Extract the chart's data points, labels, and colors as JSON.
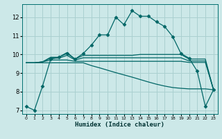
{
  "xlabel": "Humidex (Indice chaleur)",
  "bg_color": "#cce8e8",
  "grid_color": "#aad0d0",
  "line_color": "#006666",
  "xlim": [
    -0.5,
    23.5
  ],
  "ylim": [
    6.8,
    12.7
  ],
  "yticks": [
    7,
    8,
    9,
    10,
    11,
    12
  ],
  "xticks": [
    0,
    1,
    2,
    3,
    4,
    5,
    6,
    7,
    8,
    9,
    10,
    11,
    12,
    13,
    14,
    15,
    16,
    17,
    18,
    19,
    20,
    21,
    22,
    23
  ],
  "series": [
    {
      "x": [
        0,
        1,
        2,
        3,
        4,
        5,
        6,
        7,
        8,
        9,
        10,
        11,
        12,
        13,
        14,
        15,
        16,
        17,
        18,
        19,
        20,
        21,
        22,
        23
      ],
      "y": [
        7.2,
        7.0,
        8.3,
        9.75,
        9.85,
        10.05,
        9.75,
        10.05,
        10.5,
        11.05,
        11.05,
        12.0,
        11.6,
        12.35,
        12.05,
        12.05,
        11.75,
        11.5,
        10.95,
        10.05,
        9.8,
        9.1,
        7.2,
        8.1
      ],
      "marker": "D",
      "markersize": 2.5,
      "linewidth": 0.9
    },
    {
      "x": [
        0,
        1,
        2,
        3,
        4,
        5,
        6,
        7,
        8,
        9,
        10,
        11,
        12,
        13,
        14,
        15,
        16,
        17,
        18,
        19,
        20,
        21,
        22,
        23
      ],
      "y": [
        9.55,
        9.55,
        9.6,
        9.85,
        9.85,
        10.1,
        9.75,
        9.95,
        9.95,
        9.95,
        9.95,
        9.95,
        9.95,
        9.95,
        10.0,
        10.0,
        10.0,
        10.0,
        10.0,
        10.0,
        9.75,
        9.75,
        9.75,
        8.1
      ],
      "marker": null,
      "markersize": 0,
      "linewidth": 0.9
    },
    {
      "x": [
        0,
        1,
        2,
        3,
        4,
        5,
        6,
        7,
        8,
        9,
        10,
        11,
        12,
        13,
        14,
        15,
        16,
        17,
        18,
        19,
        20,
        21,
        22,
        23
      ],
      "y": [
        9.55,
        9.55,
        9.6,
        9.8,
        9.8,
        9.95,
        9.7,
        9.82,
        9.82,
        9.82,
        9.82,
        9.82,
        9.82,
        9.82,
        9.82,
        9.82,
        9.82,
        9.82,
        9.82,
        9.82,
        9.65,
        9.65,
        9.65,
        8.1
      ],
      "marker": null,
      "markersize": 0,
      "linewidth": 0.9
    },
    {
      "x": [
        0,
        1,
        2,
        3,
        4,
        5,
        6,
        7,
        8,
        9,
        10,
        11,
        12,
        13,
        14,
        15,
        16,
        17,
        18,
        19,
        20,
        21,
        22,
        23
      ],
      "y": [
        9.55,
        9.55,
        9.6,
        9.7,
        9.7,
        9.7,
        9.63,
        9.63,
        9.63,
        9.63,
        9.63,
        9.63,
        9.63,
        9.63,
        9.63,
        9.63,
        9.63,
        9.63,
        9.63,
        9.63,
        9.57,
        9.57,
        9.57,
        8.1
      ],
      "marker": null,
      "markersize": 0,
      "linewidth": 0.9
    },
    {
      "x": [
        0,
        1,
        2,
        3,
        4,
        5,
        6,
        7,
        8,
        9,
        10,
        11,
        12,
        13,
        14,
        15,
        16,
        17,
        18,
        19,
        20,
        21,
        22,
        23
      ],
      "y": [
        9.55,
        9.55,
        9.55,
        9.55,
        9.55,
        9.55,
        9.55,
        9.55,
        9.4,
        9.28,
        9.15,
        9.02,
        8.9,
        8.78,
        8.65,
        8.52,
        8.4,
        8.3,
        8.22,
        8.18,
        8.15,
        8.15,
        8.15,
        8.1
      ],
      "marker": null,
      "markersize": 0,
      "linewidth": 0.9
    }
  ]
}
